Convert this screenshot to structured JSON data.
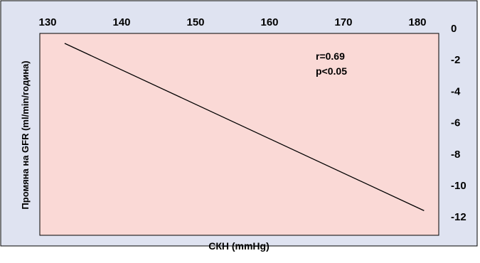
{
  "chart_data": {
    "type": "line",
    "title": "",
    "xlabel": "СКН (mmHg)",
    "ylabel": "Промяна на GFR (ml/min/година)",
    "xlim": [
      127,
      184
    ],
    "ylim": [
      0,
      -13
    ],
    "x_ticks": [
      130,
      140,
      150,
      160,
      170,
      180
    ],
    "y_ticks": [
      0,
      -2,
      -4,
      -6,
      -8,
      -10,
      -12
    ],
    "x_tick_labels": [
      "130",
      "140",
      "150",
      "160",
      "170",
      "180"
    ],
    "y_tick_labels": [
      "0",
      "-2",
      "-4",
      "-6",
      "-8",
      "-10",
      "-12"
    ],
    "x_axis_position": "top",
    "y_axis_position": "right",
    "grid": false,
    "series": [
      {
        "x": [
          132.3,
          180.9
        ],
        "y": [
          -0.95,
          -11.6
        ]
      }
    ],
    "annotations": [
      "r=0.69",
      "p<0.05"
    ],
    "colors": {
      "frame_background": "#dfe3f1",
      "plot_background": "#fad9d6",
      "line": "#000000",
      "border": "#000000"
    }
  }
}
